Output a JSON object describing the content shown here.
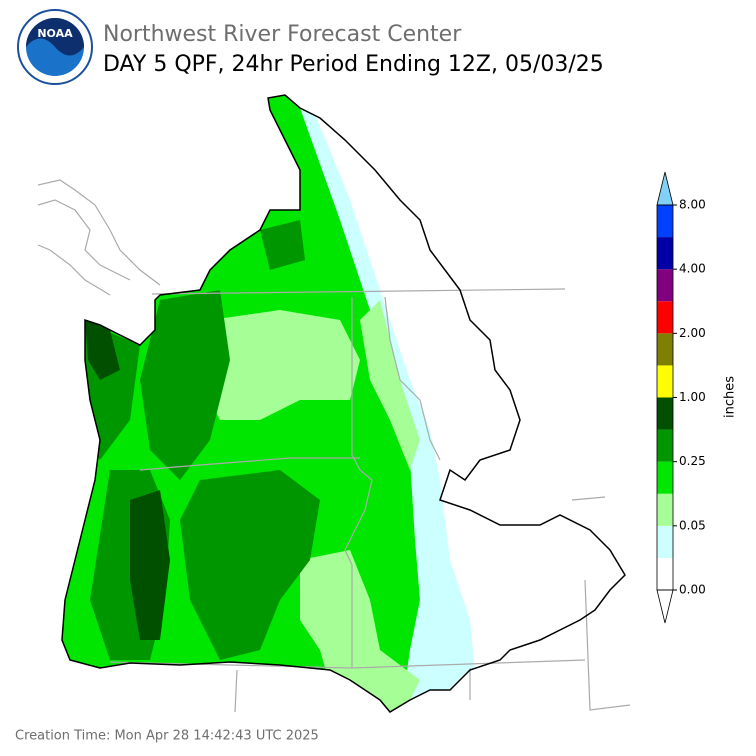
{
  "header": {
    "organization": "Northwest River Forecast Center",
    "title": "DAY 5 QPF, 24hr Period Ending 12Z, 05/03/25",
    "logo_text": "NOAA"
  },
  "legend": {
    "label": "inches",
    "ticks": [
      "0.00",
      "0.05",
      "0.25",
      "1.00",
      "2.00",
      "4.00",
      "8.00"
    ],
    "colors": [
      "#ffffff",
      "#ccffff",
      "#a6ff96",
      "#00e600",
      "#009600",
      "#005000",
      "#ffff00",
      "#808000",
      "#ff0000",
      "#800080",
      "#0000a6",
      "#0040ff"
    ],
    "over_color": "#80d0f8",
    "under_color": "#ffffff"
  },
  "footer": {
    "creation_time": "Creation Time: Mon Apr 28 14:42:43 UTC 2025"
  }
}
